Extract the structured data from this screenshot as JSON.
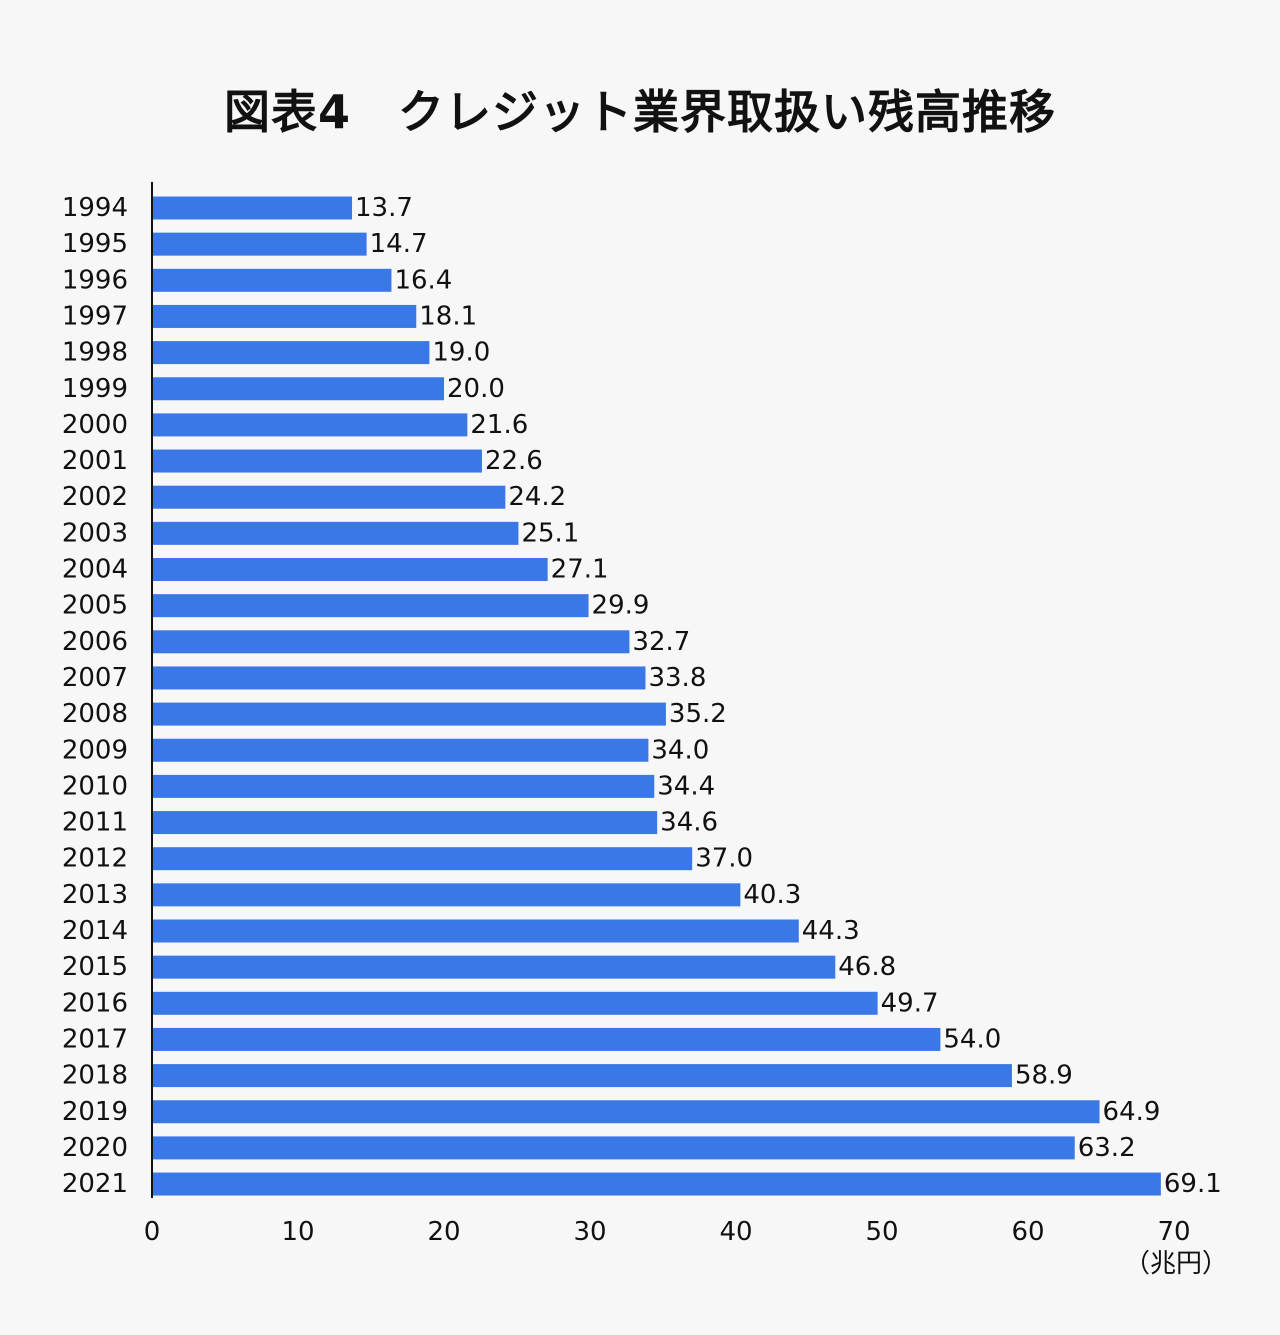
{
  "chart_data": {
    "type": "bar",
    "orientation": "horizontal",
    "title": "図表4　クレジット業界取扱い残高推移",
    "unit_label": "（兆円）",
    "categories": [
      "1994",
      "1995",
      "1996",
      "1997",
      "1998",
      "1999",
      "2000",
      "2001",
      "2002",
      "2003",
      "2004",
      "2005",
      "2006",
      "2007",
      "2008",
      "2009",
      "2010",
      "2011",
      "2012",
      "2013",
      "2014",
      "2015",
      "2016",
      "2017",
      "2018",
      "2019",
      "2020",
      "2021"
    ],
    "values": [
      13.7,
      14.7,
      16.4,
      18.1,
      19.0,
      20.0,
      21.6,
      22.6,
      24.2,
      25.1,
      27.1,
      29.9,
      32.7,
      33.8,
      35.2,
      34.0,
      34.4,
      34.6,
      37.0,
      40.3,
      44.3,
      46.8,
      49.7,
      54.0,
      58.9,
      64.9,
      63.2,
      69.1
    ],
    "value_labels": [
      "13.7",
      "14.7",
      "16.4",
      "18.1",
      "19.0",
      "20.0",
      "21.6",
      "22.6",
      "24.2",
      "25.1",
      "27.1",
      "29.9",
      "32.7",
      "33.8",
      "35.2",
      "34.0",
      "34.4",
      "34.6",
      "37.0",
      "40.3",
      "44.3",
      "46.8",
      "49.7",
      "54.0",
      "58.9",
      "64.9",
      "63.2",
      "69.1"
    ],
    "xticks": [
      0,
      10,
      20,
      30,
      40,
      50,
      60,
      70
    ],
    "xlim": [
      0,
      70
    ],
    "grid": false,
    "legend": "none",
    "bar_color": "#3b78e7",
    "axis_color": "#111111"
  }
}
